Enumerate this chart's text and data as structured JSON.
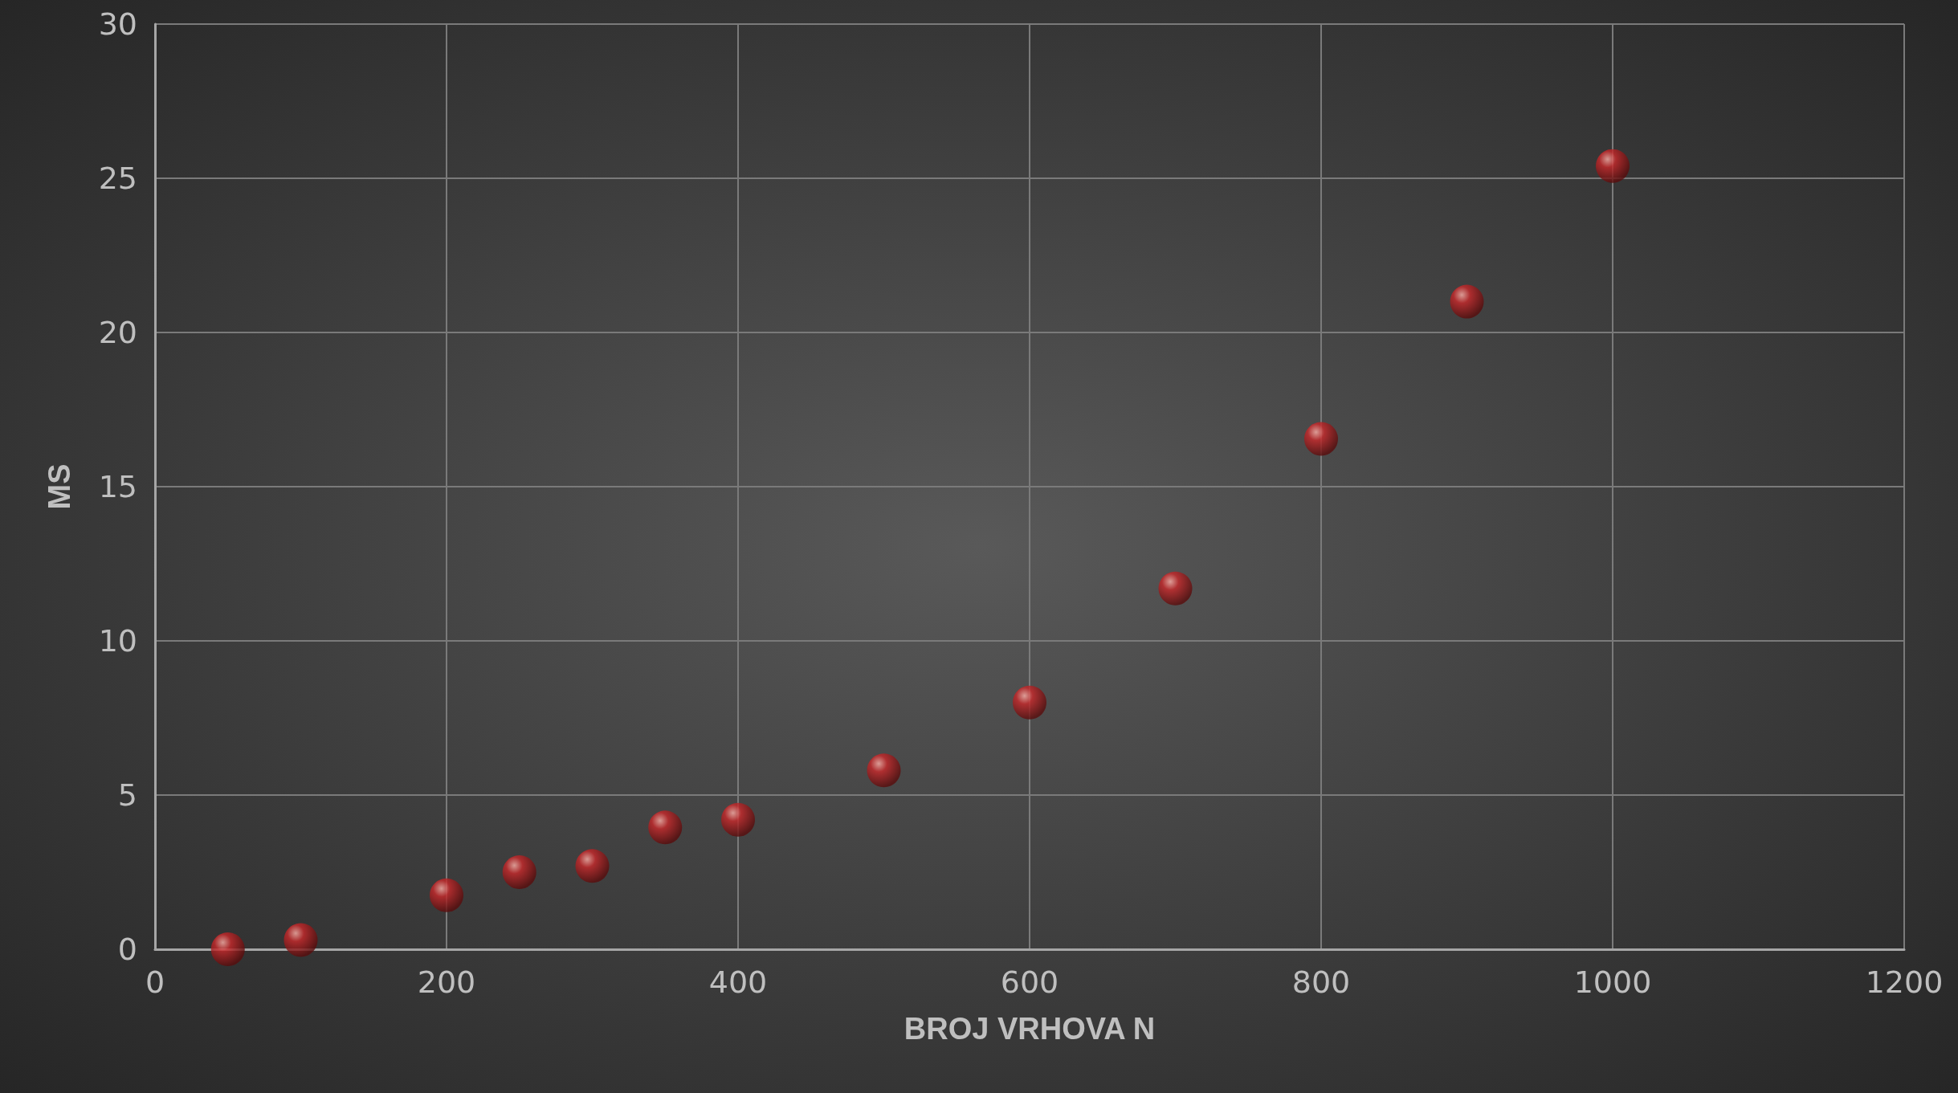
{
  "chart_data": {
    "type": "scatter",
    "xlabel": "BROJ VRHOVA N",
    "ylabel": "MS",
    "x": [
      50,
      100,
      200,
      250,
      300,
      350,
      400,
      500,
      600,
      700,
      800,
      900,
      1000
    ],
    "series": [
      {
        "color": "#c8282a",
        "values": [
          0,
          0.3,
          1.75,
          2.5,
          2.7,
          3.95,
          4.2,
          5.8,
          8.0,
          11.7,
          16.55,
          21.0,
          25.4
        ]
      }
    ],
    "xlim": [
      0,
      1200
    ],
    "xticks": [
      0,
      200,
      400,
      600,
      800,
      1000,
      1200
    ],
    "ylim": [
      0,
      30
    ],
    "yticks": [
      0,
      5,
      10,
      15,
      20,
      25,
      30
    ],
    "grid": true,
    "marker": "circle"
  }
}
